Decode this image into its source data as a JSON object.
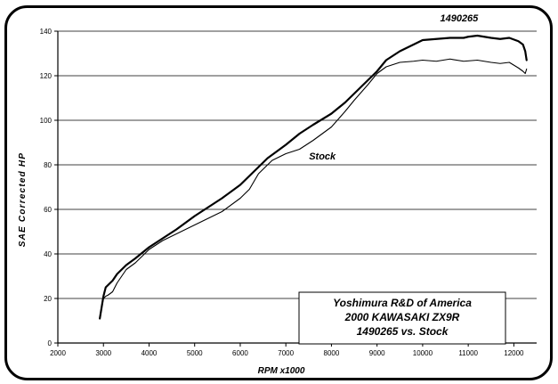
{
  "chart_data": {
    "type": "line",
    "xlabel": "RPM x1000",
    "ylabel": "SAE Corrected HP",
    "xlim": [
      2000,
      12500
    ],
    "ylim": [
      0,
      140
    ],
    "x_ticks": [
      2000,
      3000,
      4000,
      5000,
      6000,
      7000,
      8000,
      9000,
      10000,
      11000,
      12000
    ],
    "y_ticks": [
      0,
      20,
      40,
      60,
      80,
      100,
      120,
      140
    ],
    "grid": "horizontal",
    "annotation_box": {
      "lines": [
        "Yoshimura R&D of America",
        "2000 KAWASAKI ZX9R",
        "1490265 vs. Stock"
      ],
      "placement": "bottom-right"
    },
    "series": [
      {
        "name": "1490265",
        "color": "#000000",
        "x": [
          2920,
          2960,
          3000,
          3050,
          3100,
          3200,
          3300,
          3500,
          3700,
          4000,
          4300,
          4600,
          5000,
          5300,
          5600,
          6000,
          6300,
          6600,
          7000,
          7300,
          7600,
          8000,
          8300,
          8600,
          8800,
          9000,
          9200,
          9500,
          9800,
          10000,
          10300,
          10600,
          10900,
          11000,
          11200,
          11500,
          11700,
          11900,
          12100,
          12200,
          12250,
          12280
        ],
        "y": [
          11,
          16,
          21,
          25,
          26,
          28,
          31,
          35,
          38,
          43,
          47,
          51,
          57,
          61,
          65,
          71,
          77,
          83,
          89,
          94,
          98,
          103,
          108,
          114,
          118,
          122,
          127,
          131,
          134,
          136,
          136.5,
          137,
          137,
          137.5,
          138,
          137,
          136.5,
          137,
          135.5,
          134,
          131,
          127
        ]
      },
      {
        "name": "Stock",
        "color": "#000000",
        "x": [
          2920,
          2960,
          3000,
          3050,
          3100,
          3200,
          3300,
          3500,
          3700,
          4000,
          4300,
          4600,
          5000,
          5300,
          5600,
          6000,
          6200,
          6400,
          6700,
          7000,
          7300,
          7600,
          8000,
          8300,
          8500,
          8800,
          9000,
          9200,
          9500,
          9800,
          10000,
          10300,
          10600,
          10900,
          11200,
          11500,
          11700,
          11900,
          12100,
          12200,
          12250,
          12280
        ],
        "y": [
          11,
          16,
          20,
          21,
          21.5,
          23,
          27,
          33,
          36,
          42,
          46,
          49,
          53,
          56,
          59,
          65,
          69,
          76,
          82,
          85,
          87,
          91,
          97,
          104,
          109,
          116,
          121,
          124,
          126,
          126.5,
          127,
          126.5,
          127.5,
          126.5,
          127,
          126,
          125.5,
          126,
          123.5,
          122,
          121,
          123
        ]
      }
    ]
  }
}
